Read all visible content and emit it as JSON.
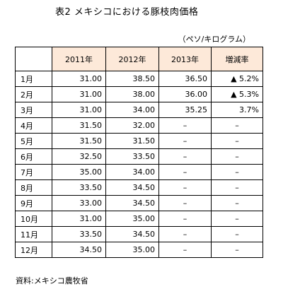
{
  "title": "表2  メキシコにおける豚枝肉価格",
  "unit": "（ペソ/キログラム）",
  "table": {
    "corner": "",
    "columns": [
      "2011年",
      "2012年",
      "2013年",
      "増減率"
    ],
    "rows": [
      {
        "month": "1月",
        "y2011": "31.00",
        "y2012": "38.50",
        "y2013": "36.50",
        "rate": "▲ 5.2%"
      },
      {
        "month": "2月",
        "y2011": "31.00",
        "y2012": "38.00",
        "y2013": "36.00",
        "rate": "▲ 5.3%"
      },
      {
        "month": "3月",
        "y2011": "31.00",
        "y2012": "34.00",
        "y2013": "35.25",
        "rate": "3.7%"
      },
      {
        "month": "4月",
        "y2011": "31.50",
        "y2012": "32.00",
        "y2013": "–",
        "rate": "–"
      },
      {
        "month": "5月",
        "y2011": "31.50",
        "y2012": "31.50",
        "y2013": "–",
        "rate": "–"
      },
      {
        "month": "6月",
        "y2011": "32.50",
        "y2012": "33.50",
        "y2013": "–",
        "rate": "–"
      },
      {
        "month": "7月",
        "y2011": "35.00",
        "y2012": "34.00",
        "y2013": "–",
        "rate": "–"
      },
      {
        "month": "8月",
        "y2011": "33.50",
        "y2012": "34.50",
        "y2013": "–",
        "rate": "–"
      },
      {
        "month": "9月",
        "y2011": "33.00",
        "y2012": "34.50",
        "y2013": "–",
        "rate": "–"
      },
      {
        "month": "10月",
        "y2011": "31.00",
        "y2012": "35.00",
        "y2013": "–",
        "rate": "–"
      },
      {
        "month": "11月",
        "y2011": "33.50",
        "y2012": "34.50",
        "y2013": "–",
        "rate": "–"
      },
      {
        "month": "12月",
        "y2011": "34.50",
        "y2013": "–",
        "y2012": "35.00",
        "rate": "–"
      }
    ]
  },
  "source": "資料:メキシコ農牧省",
  "colors": {
    "header_fill": "#fde9d9",
    "border": "#000000"
  }
}
